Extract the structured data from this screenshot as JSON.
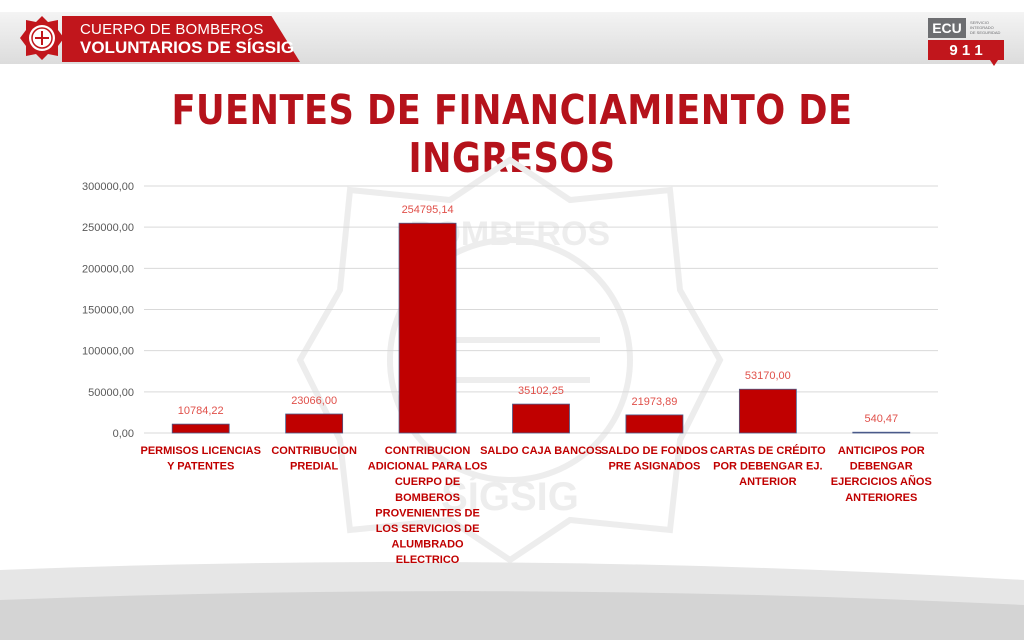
{
  "header": {
    "org_line1": "CUERPO DE BOMBEROS",
    "org_line2": "VOLUNTARIOS DE SÍGSIG",
    "ecu_logo_text": "ECU",
    "ecu_logo_number": "9 1 1",
    "ecu_logo_tagline": [
      "SERVICIO",
      "INTEGRADO",
      "DE SEGURIDAD"
    ]
  },
  "title": "FUENTES DE FINANCIAMIENTO DE INGRESOS",
  "watermark": {
    "top": "BOMBEROS",
    "bottom": "SÍGSIG"
  },
  "colors": {
    "bar": "#c00000",
    "bar_border": "#4a5a8a",
    "title": "#b5121b",
    "label": "#c00000",
    "data_label": "#e0504a",
    "grid": "#d9d9d9"
  },
  "chart_data": {
    "type": "bar",
    "title": "",
    "xlabel": "",
    "ylabel": "",
    "ylim": [
      0,
      300000
    ],
    "grid": true,
    "y_ticks": [
      "0,00",
      "50000,00",
      "100000,00",
      "150000,00",
      "200000,00",
      "250000,00",
      "300000,00"
    ],
    "categories": [
      [
        "PERMISOS LICENCIAS",
        "Y PATENTES"
      ],
      [
        "CONTRIBUCION",
        "PREDIAL"
      ],
      [
        "CONTRIBUCION",
        "ADICIONAL PARA LOS",
        "CUERPO DE",
        "BOMBEROS",
        "PROVENIENTES DE",
        "LOS SERVICIOS DE",
        "ALUMBRADO",
        "ELECTRICO"
      ],
      [
        "SALDO CAJA BANCOS"
      ],
      [
        "SALDO DE FONDOS",
        "PRE ASIGNADOS"
      ],
      [
        "CARTAS DE CRÉDITO",
        "POR DEBENGAR EJ.",
        "ANTERIOR"
      ],
      [
        "ANTICIPOS POR",
        "DEBENGAR",
        "EJERCICIOS AÑOS",
        "ANTERIORES"
      ]
    ],
    "values": [
      10784.22,
      23066.0,
      254795.14,
      35102.25,
      21973.89,
      53170.0,
      540.47
    ],
    "data_labels": [
      "10784,22",
      "23066,00",
      "254795,14",
      "35102,25",
      "21973,89",
      "53170,00",
      "540,47"
    ]
  }
}
